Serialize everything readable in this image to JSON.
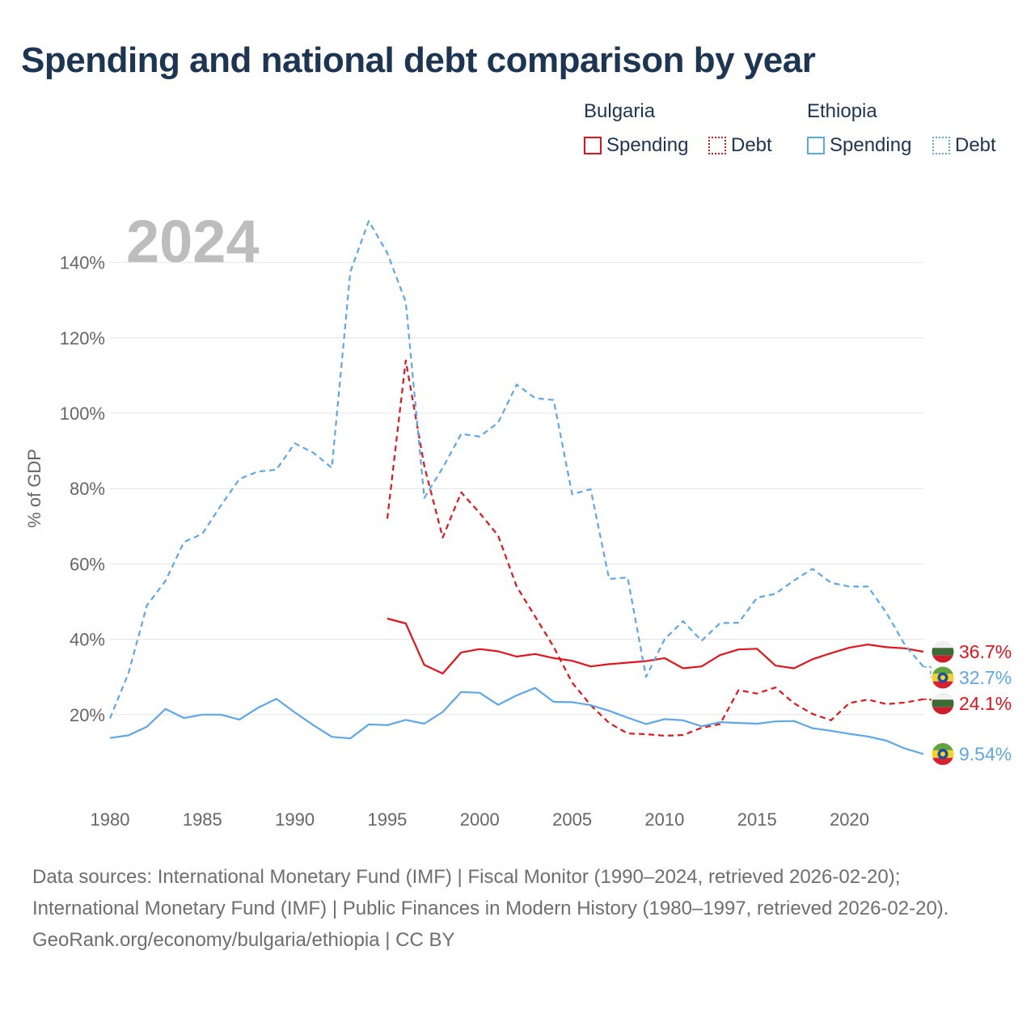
{
  "title": "Spending and national debt comparison by year",
  "legend": {
    "groups": [
      {
        "name": "Bulgaria",
        "color": "#e5141b",
        "items": [
          {
            "label": "Spending",
            "style": "solid"
          },
          {
            "label": "Debt",
            "style": "dotted"
          }
        ]
      },
      {
        "name": "Ethiopia",
        "color": "#5ea7e8",
        "items": [
          {
            "label": "Spending",
            "style": "solid"
          },
          {
            "label": "Debt",
            "style": "dotted"
          }
        ]
      }
    ]
  },
  "year_watermark": "2024",
  "footer": {
    "sources": "Data sources: International Monetary Fund (IMF) | Fiscal Monitor (1990–2024, retrieved 2026-02-20); International Monetary Fund (IMF) | Public Finances in Modern History (1980–1997, retrieved 2026-02-20).",
    "credit": "GeoRank.org/economy/bulgaria/ethiopia | CC BY"
  },
  "chart_data": {
    "type": "line",
    "title": "Spending and national debt comparison by year",
    "xlabel": "",
    "ylabel": "% of GDP",
    "xlim": [
      1980,
      2024
    ],
    "ylim": [
      0,
      150
    ],
    "x_ticks": [
      1980,
      1985,
      1990,
      1995,
      2000,
      2005,
      2010,
      2015,
      2020
    ],
    "y_ticks": [
      20,
      40,
      60,
      80,
      100,
      120,
      140
    ],
    "y_tick_labels": [
      "20%",
      "40%",
      "60%",
      "80%",
      "100%",
      "120%",
      "140%"
    ],
    "grid": true,
    "series": [
      {
        "name": "Bulgaria Spending",
        "country": "Bulgaria",
        "color": "#e5141b",
        "dash": "solid",
        "start_year": 1995,
        "values": [
          45.5,
          44.2,
          33.2,
          30.9,
          36.5,
          37.4,
          36.8,
          35.4,
          36.1,
          35.0,
          34.3,
          32.8,
          33.4,
          33.8,
          34.2,
          35.0,
          32.3,
          32.8,
          35.8,
          37.3,
          37.5,
          33.0,
          32.3,
          34.7,
          36.3,
          37.8,
          38.6,
          37.9,
          37.6,
          36.7
        ],
        "end_label": "36.7%"
      },
      {
        "name": "Bulgaria Debt",
        "country": "Bulgaria",
        "color": "#e5141b",
        "dash": "dashed",
        "start_year": 1995,
        "values": [
          72,
          114,
          86,
          67,
          79,
          73.5,
          67.5,
          54,
          46,
          38,
          28.5,
          22.5,
          17.8,
          15,
          14.8,
          14.4,
          14.6,
          16.5,
          17.5,
          26.5,
          25.6,
          27.2,
          23,
          20.2,
          18.5,
          23.1,
          24,
          22.8,
          23.2,
          24.1
        ],
        "end_label": "24.1%"
      },
      {
        "name": "Ethiopia Spending",
        "country": "Ethiopia",
        "color": "#5ea7e8",
        "dash": "solid",
        "start_year": 1980,
        "values": [
          13.8,
          14.5,
          16.8,
          21.5,
          19.1,
          20,
          20,
          18.7,
          21.8,
          24.2,
          20.6,
          17.2,
          14.1,
          13.7,
          17.4,
          17.2,
          18.6,
          17.6,
          20.7,
          26,
          25.8,
          22.6,
          25.1,
          27.1,
          23.4,
          23.3,
          22.5,
          21,
          19.2,
          17.5,
          18.8,
          18.5,
          16.9,
          18,
          17.8,
          17.6,
          18.2,
          18.3,
          16.4,
          15.7,
          14.9,
          14.2,
          13.1,
          11,
          9.54
        ],
        "end_label": "9.54%"
      },
      {
        "name": "Ethiopia Debt",
        "country": "Ethiopia",
        "color": "#5ea7e8",
        "dash": "dashed",
        "start_year": 1980,
        "values": [
          19,
          31,
          49,
          55.5,
          65.8,
          68,
          75.5,
          82.5,
          84.5,
          85,
          92,
          89.5,
          85.5,
          137.5,
          151,
          142.5,
          129.5,
          77.5,
          85.5,
          94.5,
          93.8,
          97.5,
          107.6,
          104,
          103.5,
          78.5,
          79.8,
          56,
          56.4,
          30,
          40,
          44.8,
          39.6,
          44.3,
          44.4,
          51,
          52.1,
          55.6,
          58.7,
          55,
          54,
          54,
          47,
          38.5,
          32.7
        ],
        "end_label": "32.7%"
      }
    ]
  }
}
